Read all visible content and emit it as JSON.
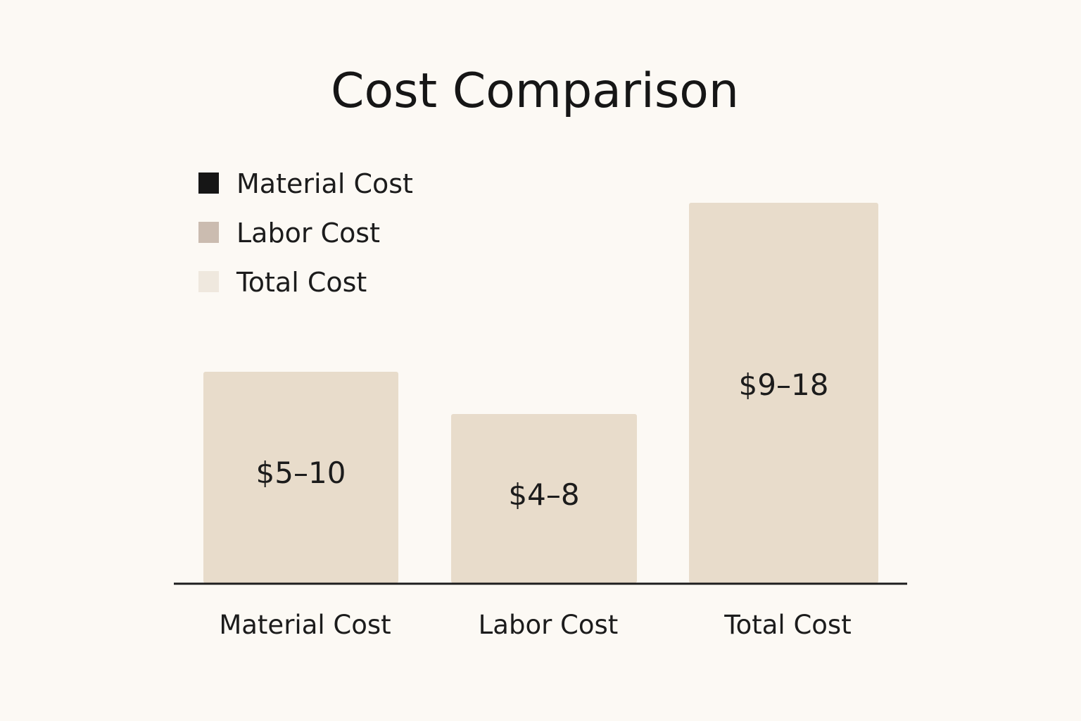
{
  "chart_data": {
    "type": "bar",
    "title": "Cost Comparison",
    "xlabel": "",
    "ylabel": "",
    "categories": [
      "Material Cost",
      "Labor Cost",
      "Total Cost"
    ],
    "values": [
      10,
      8,
      18
    ],
    "value_labels": [
      "$5–10",
      "$4–8",
      "$9–18"
    ],
    "ylim": [
      0,
      20
    ],
    "grid": false,
    "legend": {
      "placement": "top-left",
      "entries": [
        {
          "label": "Material Cost",
          "color": "#161616"
        },
        {
          "label": "Labor Cost",
          "color": "#cbbcb0"
        },
        {
          "label": "Total Cost",
          "color": "#efe8de"
        }
      ]
    },
    "bar_color": "#e8dccb",
    "axis_color": "#1e1e1e"
  }
}
